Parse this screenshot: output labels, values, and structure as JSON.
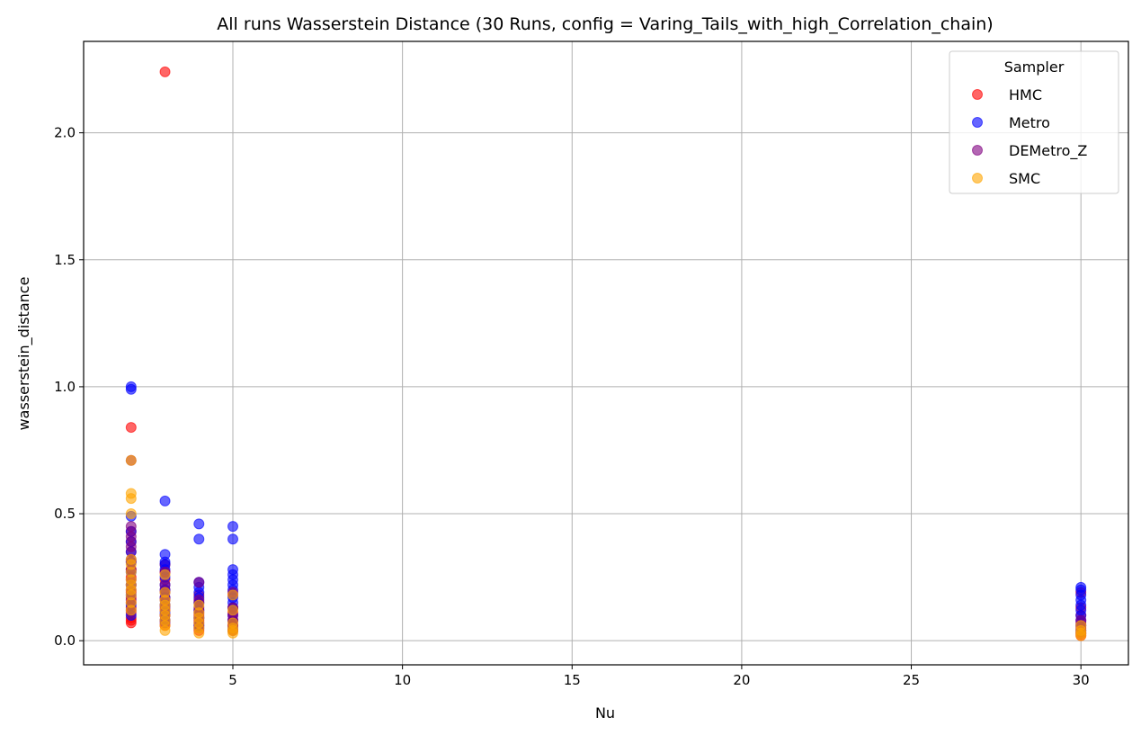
{
  "chart_data": {
    "type": "scatter",
    "title": "All runs Wasserstein Distance (30 Runs, config = Varing_Tails_with_high_Correlation_chain)",
    "xlabel": "Nu",
    "ylabel": "wasserstein_distance",
    "xlim": [
      0.6,
      31.4
    ],
    "ylim": [
      -0.095,
      2.36
    ],
    "xticks": [
      5,
      10,
      15,
      20,
      25,
      30
    ],
    "xtick_labels": [
      "5",
      "10",
      "15",
      "20",
      "25",
      "30"
    ],
    "yticks": [
      0.0,
      0.5,
      1.0,
      1.5,
      2.0
    ],
    "ytick_labels": [
      "0.0",
      "0.5",
      "1.0",
      "1.5",
      "2.0"
    ],
    "grid": true,
    "legend": {
      "title": "Sampler",
      "placement": "top-right"
    },
    "series": [
      {
        "name": "HMC",
        "color": "#ff0000",
        "points": [
          [
            2,
            0.07
          ],
          [
            2,
            0.08
          ],
          [
            2,
            0.09
          ],
          [
            2,
            0.11
          ],
          [
            2,
            0.13
          ],
          [
            2,
            0.15
          ],
          [
            2,
            0.17
          ],
          [
            2,
            0.19
          ],
          [
            2,
            0.22
          ],
          [
            2,
            0.25
          ],
          [
            2,
            0.28
          ],
          [
            2,
            0.31
          ],
          [
            2,
            0.35
          ],
          [
            2,
            0.39
          ],
          [
            2,
            0.43
          ],
          [
            2,
            0.84
          ],
          [
            3,
            0.06
          ],
          [
            3,
            0.08
          ],
          [
            3,
            0.1
          ],
          [
            3,
            0.12
          ],
          [
            3,
            0.14
          ],
          [
            3,
            0.17
          ],
          [
            3,
            0.2
          ],
          [
            3,
            0.24
          ],
          [
            3,
            0.27
          ],
          [
            3,
            0.3
          ],
          [
            3,
            2.24
          ],
          [
            4,
            0.04
          ],
          [
            4,
            0.06
          ],
          [
            4,
            0.08
          ],
          [
            4,
            0.1
          ],
          [
            4,
            0.12
          ],
          [
            4,
            0.15
          ],
          [
            4,
            0.18
          ],
          [
            5,
            0.04
          ],
          [
            5,
            0.06
          ],
          [
            5,
            0.08
          ],
          [
            5,
            0.11
          ],
          [
            5,
            0.13
          ],
          [
            5,
            0.18
          ],
          [
            30,
            0.02
          ],
          [
            30,
            0.03
          ],
          [
            30,
            0.05
          ],
          [
            30,
            0.07
          ],
          [
            30,
            0.1
          ],
          [
            30,
            0.13
          ],
          [
            30,
            0.19
          ]
        ]
      },
      {
        "name": "Metro",
        "color": "#0000ff",
        "points": [
          [
            2,
            0.1
          ],
          [
            2,
            0.14
          ],
          [
            2,
            0.18
          ],
          [
            2,
            0.22
          ],
          [
            2,
            0.27
          ],
          [
            2,
            0.31
          ],
          [
            2,
            0.35
          ],
          [
            2,
            0.39
          ],
          [
            2,
            0.43
          ],
          [
            2,
            0.49
          ],
          [
            2,
            0.99
          ],
          [
            2,
            1.0
          ],
          [
            3,
            0.08
          ],
          [
            3,
            0.11
          ],
          [
            3,
            0.14
          ],
          [
            3,
            0.17
          ],
          [
            3,
            0.2
          ],
          [
            3,
            0.22
          ],
          [
            3,
            0.25
          ],
          [
            3,
            0.28
          ],
          [
            3,
            0.3
          ],
          [
            3,
            0.31
          ],
          [
            3,
            0.34
          ],
          [
            3,
            0.55
          ],
          [
            4,
            0.06
          ],
          [
            4,
            0.09
          ],
          [
            4,
            0.12
          ],
          [
            4,
            0.15
          ],
          [
            4,
            0.17
          ],
          [
            4,
            0.19
          ],
          [
            4,
            0.21
          ],
          [
            4,
            0.23
          ],
          [
            4,
            0.4
          ],
          [
            4,
            0.46
          ],
          [
            5,
            0.05
          ],
          [
            5,
            0.08
          ],
          [
            5,
            0.1
          ],
          [
            5,
            0.13
          ],
          [
            5,
            0.15
          ],
          [
            5,
            0.17
          ],
          [
            5,
            0.2
          ],
          [
            5,
            0.22
          ],
          [
            5,
            0.24
          ],
          [
            5,
            0.26
          ],
          [
            5,
            0.28
          ],
          [
            5,
            0.4
          ],
          [
            5,
            0.45
          ],
          [
            30,
            0.04
          ],
          [
            30,
            0.06
          ],
          [
            30,
            0.08
          ],
          [
            30,
            0.1
          ],
          [
            30,
            0.12
          ],
          [
            30,
            0.14
          ],
          [
            30,
            0.16
          ],
          [
            30,
            0.18
          ],
          [
            30,
            0.2
          ],
          [
            30,
            0.21
          ]
        ]
      },
      {
        "name": "DEMetro_Z",
        "color": "#800080",
        "points": [
          [
            2,
            0.12
          ],
          [
            2,
            0.16
          ],
          [
            2,
            0.2
          ],
          [
            2,
            0.24
          ],
          [
            2,
            0.28
          ],
          [
            2,
            0.32
          ],
          [
            2,
            0.37
          ],
          [
            2,
            0.41
          ],
          [
            2,
            0.45
          ],
          [
            2,
            0.71
          ],
          [
            3,
            0.07
          ],
          [
            3,
            0.1
          ],
          [
            3,
            0.13
          ],
          [
            3,
            0.16
          ],
          [
            3,
            0.19
          ],
          [
            3,
            0.22
          ],
          [
            3,
            0.27
          ],
          [
            4,
            0.05
          ],
          [
            4,
            0.07
          ],
          [
            4,
            0.09
          ],
          [
            4,
            0.11
          ],
          [
            4,
            0.13
          ],
          [
            4,
            0.16
          ],
          [
            4,
            0.23
          ],
          [
            5,
            0.04
          ],
          [
            5,
            0.06
          ],
          [
            5,
            0.08
          ],
          [
            5,
            0.1
          ],
          [
            5,
            0.13
          ],
          [
            5,
            0.19
          ],
          [
            30,
            0.03
          ],
          [
            30,
            0.04
          ],
          [
            30,
            0.06
          ],
          [
            30,
            0.08
          ]
        ]
      },
      {
        "name": "SMC",
        "color": "#ffa500",
        "points": [
          [
            2,
            0.12
          ],
          [
            2,
            0.15
          ],
          [
            2,
            0.18
          ],
          [
            2,
            0.2
          ],
          [
            2,
            0.22
          ],
          [
            2,
            0.24
          ],
          [
            2,
            0.27
          ],
          [
            2,
            0.3
          ],
          [
            2,
            0.32
          ],
          [
            2,
            0.5
          ],
          [
            2,
            0.56
          ],
          [
            2,
            0.58
          ],
          [
            2,
            0.71
          ],
          [
            3,
            0.04
          ],
          [
            3,
            0.06
          ],
          [
            3,
            0.08
          ],
          [
            3,
            0.1
          ],
          [
            3,
            0.12
          ],
          [
            3,
            0.14
          ],
          [
            3,
            0.16
          ],
          [
            3,
            0.19
          ],
          [
            3,
            0.26
          ],
          [
            4,
            0.03
          ],
          [
            4,
            0.05
          ],
          [
            4,
            0.07
          ],
          [
            4,
            0.09
          ],
          [
            4,
            0.11
          ],
          [
            4,
            0.14
          ],
          [
            5,
            0.03
          ],
          [
            5,
            0.04
          ],
          [
            5,
            0.05
          ],
          [
            5,
            0.07
          ],
          [
            5,
            0.12
          ],
          [
            5,
            0.18
          ],
          [
            30,
            0.02
          ],
          [
            30,
            0.03
          ],
          [
            30,
            0.04
          ],
          [
            30,
            0.06
          ]
        ]
      }
    ]
  }
}
